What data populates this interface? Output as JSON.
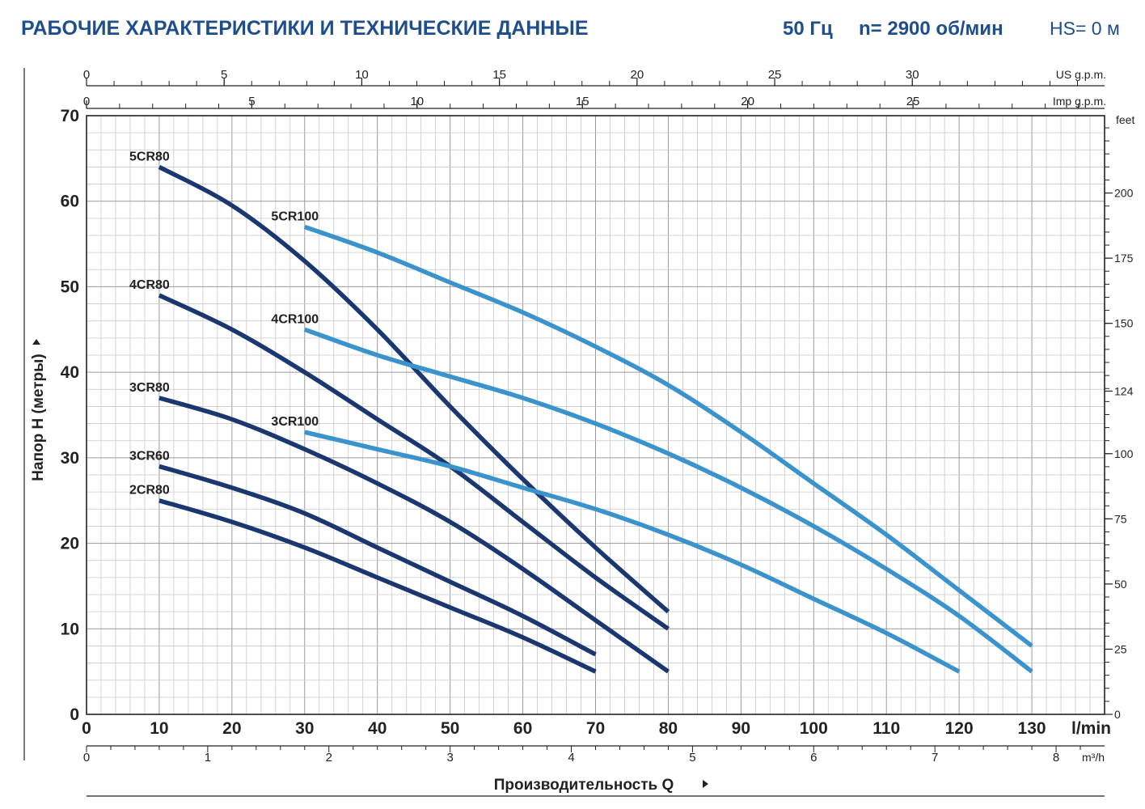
{
  "header": {
    "title": "РАБОЧИЕ ХАРАКТЕРИСТИКИ И ТЕХНИЧЕСКИЕ ДАННЫЕ",
    "freq": "50 Гц",
    "speed": "n= 2900 об/мин",
    "hs": "HS= 0 м"
  },
  "chart_data": {
    "type": "line",
    "xlabel": "Производительность Q",
    "ylabel": "Напор H (метры)",
    "x_unit": "l/min",
    "xlim": [
      0,
      140
    ],
    "ylim": [
      0,
      70
    ],
    "x_ticks": [
      0,
      10,
      20,
      30,
      40,
      50,
      60,
      70,
      80,
      90,
      100,
      110,
      120,
      130
    ],
    "y_ticks": [
      0,
      10,
      20,
      30,
      40,
      50,
      60,
      70
    ],
    "grid": true,
    "top_axis_us": {
      "unit": "US g.p.m.",
      "ticks": [
        0,
        5,
        10,
        15,
        20,
        25,
        30
      ]
    },
    "top_axis_imp": {
      "unit": "Imp g.p.m.",
      "ticks": [
        0,
        5,
        10,
        15,
        20,
        25
      ]
    },
    "right_axis": {
      "unit": "feet",
      "ticks": [
        0,
        25,
        50,
        75,
        100,
        124,
        150,
        175,
        200
      ]
    },
    "bottom_axis_m3h": {
      "unit": "m³/h",
      "ticks": [
        0,
        1,
        2,
        3,
        4,
        5,
        6,
        7,
        8
      ]
    },
    "series": [
      {
        "name": "5CR80",
        "color": "#1a3770",
        "x": [
          10,
          20,
          30,
          40,
          50,
          60,
          70,
          80
        ],
        "y": [
          64,
          59.5,
          53,
          45,
          36,
          27.5,
          19.5,
          12
        ]
      },
      {
        "name": "4CR80",
        "color": "#1a3770",
        "x": [
          10,
          20,
          30,
          40,
          50,
          60,
          70,
          80
        ],
        "y": [
          49,
          45,
          40,
          34.5,
          29,
          22.5,
          16,
          10
        ]
      },
      {
        "name": "3CR80",
        "color": "#1a3770",
        "x": [
          10,
          20,
          30,
          40,
          50,
          60,
          70,
          80
        ],
        "y": [
          37,
          34.5,
          31,
          27,
          22.5,
          17,
          11,
          5
        ]
      },
      {
        "name": "3CR60",
        "color": "#1a3770",
        "x": [
          10,
          20,
          30,
          40,
          50,
          60,
          70
        ],
        "y": [
          29,
          26.5,
          23.5,
          19.5,
          15.5,
          11.5,
          7
        ]
      },
      {
        "name": "2CR80",
        "color": "#1a3770",
        "x": [
          10,
          20,
          30,
          40,
          50,
          60,
          70
        ],
        "y": [
          25,
          22.5,
          19.5,
          16,
          12.5,
          9,
          5
        ]
      },
      {
        "name": "5CR100",
        "color": "#3a93cc",
        "x": [
          30,
          40,
          50,
          60,
          70,
          80,
          90,
          100,
          110,
          120,
          130
        ],
        "y": [
          57,
          54,
          50.5,
          47,
          43,
          38.5,
          33,
          27,
          21,
          14.5,
          8
        ]
      },
      {
        "name": "4CR100",
        "color": "#3a93cc",
        "x": [
          30,
          40,
          50,
          60,
          70,
          80,
          90,
          100,
          110,
          120,
          130
        ],
        "y": [
          45,
          42,
          39.5,
          37,
          34,
          30.5,
          26.5,
          22,
          17,
          11.5,
          5
        ]
      },
      {
        "name": "3CR100",
        "color": "#3a93cc",
        "x": [
          30,
          40,
          50,
          60,
          70,
          80,
          90,
          100,
          110,
          120
        ],
        "y": [
          33,
          31,
          29,
          26.5,
          24,
          21,
          17.5,
          13.5,
          9.5,
          5
        ]
      }
    ]
  }
}
